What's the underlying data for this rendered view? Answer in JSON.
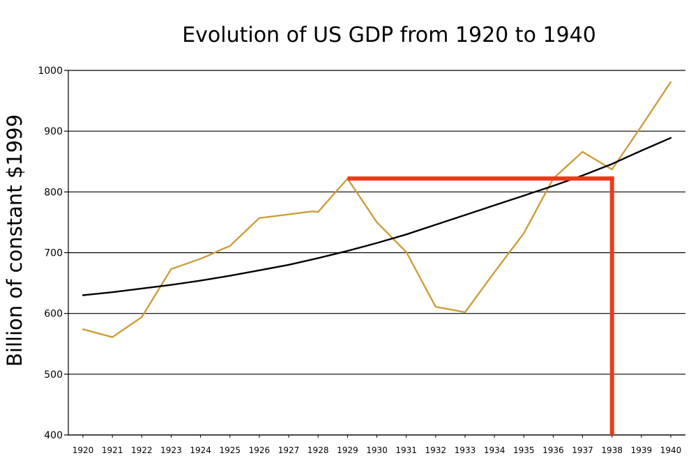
{
  "chart_data": {
    "type": "line",
    "title": "Evolution of US GDP from 1920 to 1940",
    "xlabel": "",
    "ylabel": "Billion of constant $1999",
    "xlim": [
      1920,
      1940
    ],
    "ylim": [
      400,
      1000
    ],
    "y_ticks": [
      400,
      500,
      600,
      700,
      800,
      900,
      1000
    ],
    "x_ticks": [
      1920,
      1921,
      1922,
      1923,
      1924,
      1925,
      1926,
      1927,
      1928,
      1929,
      1930,
      1931,
      1932,
      1933,
      1934,
      1935,
      1936,
      1937,
      1938,
      1939,
      1940
    ],
    "grid": "horizontal",
    "series": [
      {
        "color": "#cc9e3a",
        "points": [
          [
            1920,
            574
          ],
          [
            1921,
            561
          ],
          [
            1922,
            594
          ],
          [
            1923,
            673
          ],
          [
            1924,
            690
          ],
          [
            1924.3,
            696
          ],
          [
            1924.7,
            705
          ],
          [
            1925,
            711
          ],
          [
            1926,
            757
          ],
          [
            1927,
            763
          ],
          [
            1927.8,
            768
          ],
          [
            1928,
            767
          ],
          [
            1929,
            822
          ],
          [
            1930,
            750
          ],
          [
            1931,
            701
          ],
          [
            1932,
            611
          ],
          [
            1933,
            602
          ],
          [
            1934,
            668
          ],
          [
            1935,
            732
          ],
          [
            1936,
            822
          ],
          [
            1937,
            866
          ],
          [
            1938,
            837
          ],
          [
            1939,
            908
          ],
          [
            1940,
            981
          ]
        ]
      },
      {
        "color": "#000000",
        "points": [
          [
            1920,
            630
          ],
          [
            1921,
            635
          ],
          [
            1922,
            641
          ],
          [
            1923,
            647
          ],
          [
            1924,
            654
          ],
          [
            1925,
            662
          ],
          [
            1926,
            671
          ],
          [
            1927,
            680
          ],
          [
            1928,
            691
          ],
          [
            1929,
            703
          ],
          [
            1930,
            716
          ],
          [
            1931,
            730
          ],
          [
            1932,
            746
          ],
          [
            1933,
            762
          ],
          [
            1934,
            778
          ],
          [
            1935,
            794
          ],
          [
            1936,
            810
          ],
          [
            1937,
            827
          ],
          [
            1938,
            846
          ],
          [
            1939,
            868
          ],
          [
            1940,
            889
          ]
        ]
      }
    ],
    "annotations": [
      {
        "type": "bracket",
        "color": "#ee3a1a",
        "x_from": 1929,
        "x_to": 1938,
        "y": 822
      }
    ]
  }
}
